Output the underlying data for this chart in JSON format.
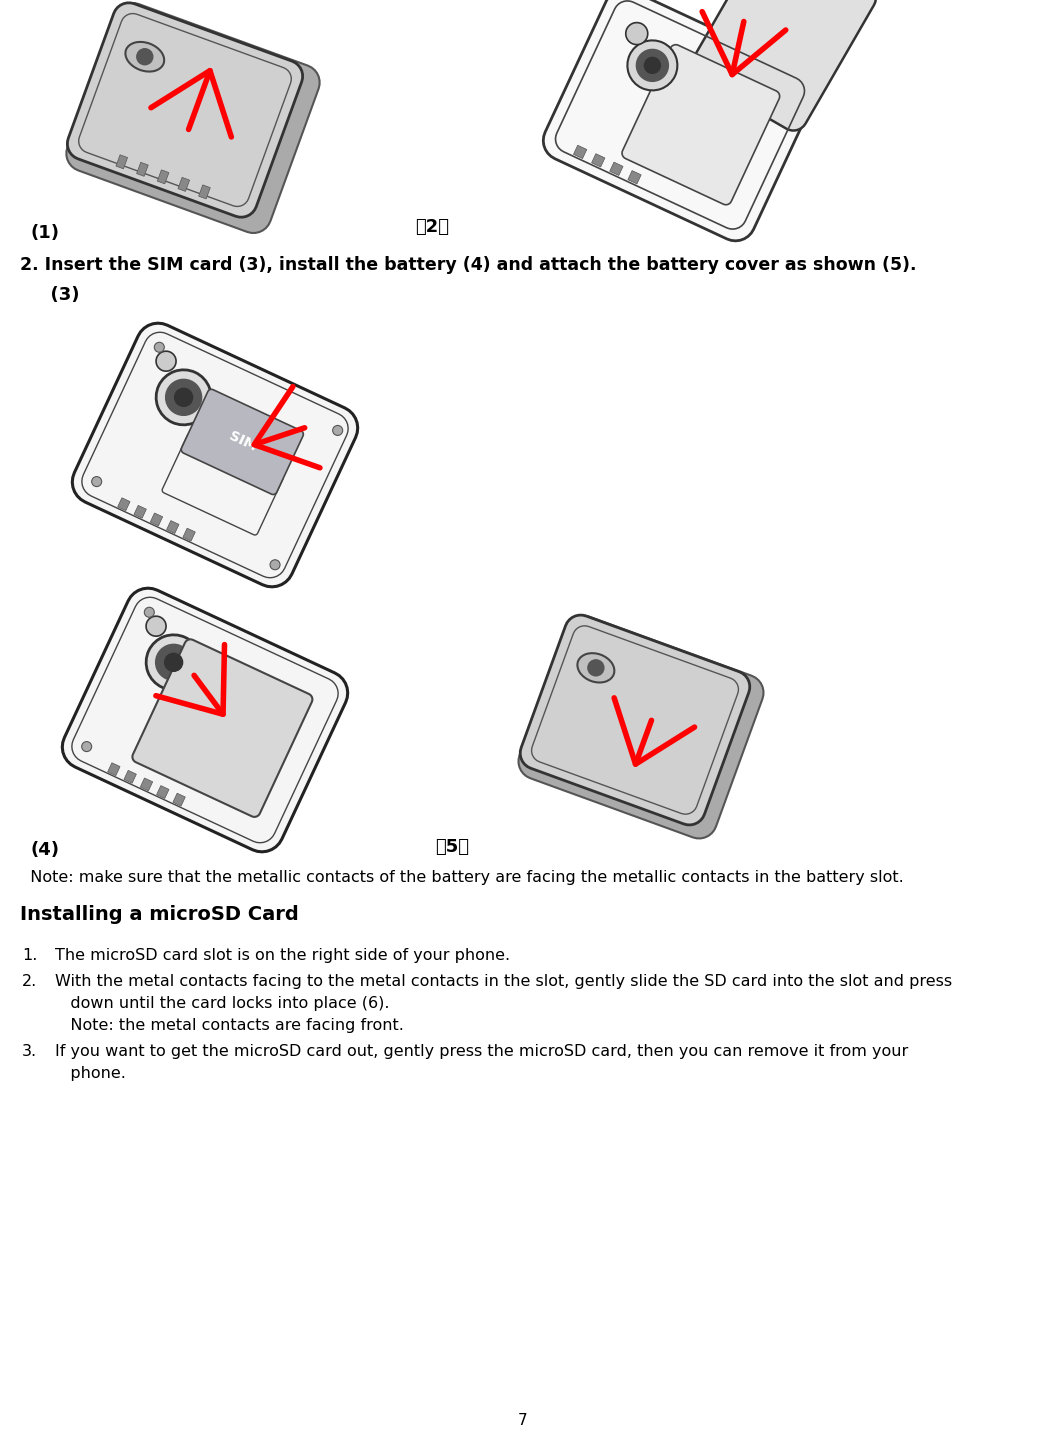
{
  "page_num": "7",
  "bg_color": "#ffffff",
  "label_1": "(1)",
  "label_2": "（2）",
  "section2_heading": "2. Insert the SIM card (3), install the battery (4) and attach the battery cover as shown (5).",
  "label_3": "  (3)",
  "label_4": "(4)",
  "label_5": "（5）",
  "note1": "  Note: make sure that the metallic contacts of the battery are facing the metallic contacts in the battery slot.",
  "section3_heading": "Installing a microSD Card",
  "item1": "The microSD card slot is on the right side of your phone.",
  "item2_line1": "With the metal contacts facing to the metal contacts in the slot, gently slide the SD card into the slot and press",
  "item2_line2": "   down until the card locks into place (6).",
  "note2": "   Note: the metal contacts are facing front.",
  "item3_line1": "If you want to get the microSD card out, gently press the microSD card, then you can remove it from your",
  "item3_line2": "   phone.",
  "font_size_body": 11.5,
  "font_size_bold": 12.5,
  "font_size_section": 14,
  "font_size_label": 12,
  "font_size_page": 11
}
